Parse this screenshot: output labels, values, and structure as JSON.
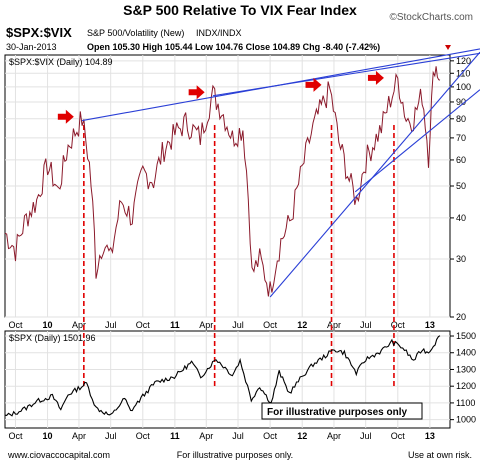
{
  "title": "S&P 500 Relative To VIX Fear Index",
  "watermark": "©StockCharts.com",
  "symbol": "$SPX:$VIX",
  "description": "S&P 500/Volatility (New)",
  "exchange": "INDX/INDX",
  "date": "30-Jan-2013",
  "ohlc": "Open 105.30   High 105.44   Low 104.76   Close 104.89   Chg -8.40 (-7.42%)",
  "footer": {
    "left": "www.ciovaccocapital.com",
    "center": "For illustrative purposes only.",
    "right": "Use at own risk."
  },
  "colors": {
    "ratio_line": "#8b1a2b",
    "price_line": "#000000",
    "trendline": "#2a3fd6",
    "marker": "#e00000",
    "down_triangle": "#cc0000"
  },
  "chart_data": [
    {
      "type": "line",
      "legend": "$SPX:$VIX (Daily) 104.89",
      "y_scale": "log",
      "ylim": [
        20,
        125
      ],
      "y_ticks": [
        20,
        30,
        40,
        50,
        60,
        70,
        80,
        90,
        100,
        110,
        120
      ],
      "x_ticks": [
        "Oct",
        "10",
        "Apr",
        "Jul",
        "Oct",
        "11",
        "Apr",
        "Jul",
        "Oct",
        "12",
        "Apr",
        "Jul",
        "Oct",
        "13"
      ],
      "x_range": [
        "2009-09-01",
        "2013-01-30"
      ],
      "series": [
        {
          "x": [
            "2009-09-01",
            "2009-10-01",
            "2009-11-01",
            "2009-12-01",
            "2010-01-01",
            "2010-02-01",
            "2010-03-01",
            "2010-04-10",
            "2010-05-01",
            "2010-05-20",
            "2010-06-10",
            "2010-07-01",
            "2010-08-01",
            "2010-09-01",
            "2010-10-01",
            "2010-11-01",
            "2010-12-01",
            "2011-01-01",
            "2011-02-01",
            "2011-03-15",
            "2011-04-20",
            "2011-05-15",
            "2011-06-15",
            "2011-07-15",
            "2011-08-10",
            "2011-09-01",
            "2011-10-01",
            "2011-11-01",
            "2011-12-01",
            "2012-01-01",
            "2012-02-01",
            "2012-03-20",
            "2012-04-15",
            "2012-05-15",
            "2012-06-05",
            "2012-07-01",
            "2012-08-15",
            "2012-09-10",
            "2012-10-01",
            "2012-10-25",
            "2012-11-15",
            "2012-12-10",
            "2012-12-28",
            "2013-01-15",
            "2013-01-30"
          ],
          "y": [
            36,
            32,
            40,
            45,
            58,
            48,
            66,
            80,
            58,
            28,
            34,
            30,
            45,
            40,
            55,
            52,
            65,
            72,
            78,
            70,
            95,
            85,
            70,
            75,
            27,
            30,
            24,
            34,
            40,
            56,
            75,
            98,
            68,
            52,
            45,
            60,
            75,
            92,
            105,
            80,
            80,
            95,
            62,
            118,
            104.89
          ]
        }
      ]
    },
    {
      "type": "line",
      "legend": "$SPX (Daily) 1501.96",
      "ylim": [
        950,
        1530
      ],
      "y_ticks": [
        1000,
        1100,
        1200,
        1300,
        1400,
        1500
      ],
      "x_ticks": [
        "Oct",
        "10",
        "Apr",
        "Jul",
        "Oct",
        "11",
        "Apr",
        "Jul",
        "Oct",
        "12",
        "Apr",
        "Jul",
        "Oct",
        "13"
      ],
      "annotation": "For illustrative purposes only",
      "series": [
        {
          "x": [
            "2009-09-01",
            "2009-10-01",
            "2009-11-01",
            "2009-12-01",
            "2010-01-15",
            "2010-02-08",
            "2010-03-01",
            "2010-04-23",
            "2010-05-20",
            "2010-07-02",
            "2010-08-10",
            "2010-08-27",
            "2010-10-01",
            "2010-11-05",
            "2010-12-31",
            "2011-02-18",
            "2011-03-16",
            "2011-04-29",
            "2011-06-15",
            "2011-07-07",
            "2011-08-08",
            "2011-09-01",
            "2011-10-04",
            "2011-10-27",
            "2011-11-25",
            "2011-12-31",
            "2012-02-01",
            "2012-04-02",
            "2012-05-01",
            "2012-06-04",
            "2012-07-01",
            "2012-08-15",
            "2012-09-14",
            "2012-10-15",
            "2012-11-15",
            "2012-12-10",
            "2012-12-28",
            "2013-01-30"
          ],
          "y": [
            1020,
            1040,
            1070,
            1110,
            1140,
            1060,
            1150,
            1217,
            1070,
            1022,
            1127,
            1050,
            1140,
            1220,
            1258,
            1343,
            1257,
            1363,
            1267,
            1353,
            1120,
            1200,
            1099,
            1285,
            1158,
            1257,
            1330,
            1419,
            1400,
            1278,
            1360,
            1410,
            1465,
            1430,
            1353,
            1420,
            1402,
            1501.96
          ]
        }
      ]
    }
  ],
  "trendlines": [
    {
      "from": [
        "2010-04-10",
        79
      ],
      "to": [
        "2013-01-30",
        124
      ]
    },
    {
      "from": [
        "2011-04-20",
        94
      ],
      "to": [
        "2013-01-30",
        121
      ]
    },
    {
      "from": [
        "2011-10-01",
        23
      ],
      "to": [
        "2013-01-30",
        92
      ]
    },
    {
      "from": [
        "2012-06-01",
        48
      ],
      "to": [
        "2013-01-30",
        78
      ]
    }
  ],
  "markers": [
    {
      "date": "2010-04-15",
      "peak": 80
    },
    {
      "date": "2011-04-25",
      "peak": 95
    },
    {
      "date": "2012-03-25",
      "peak": 100
    },
    {
      "date": "2012-09-20",
      "peak": 105
    }
  ],
  "verticals": [
    "2010-04-15",
    "2011-04-25",
    "2012-03-25",
    "2012-09-20"
  ]
}
